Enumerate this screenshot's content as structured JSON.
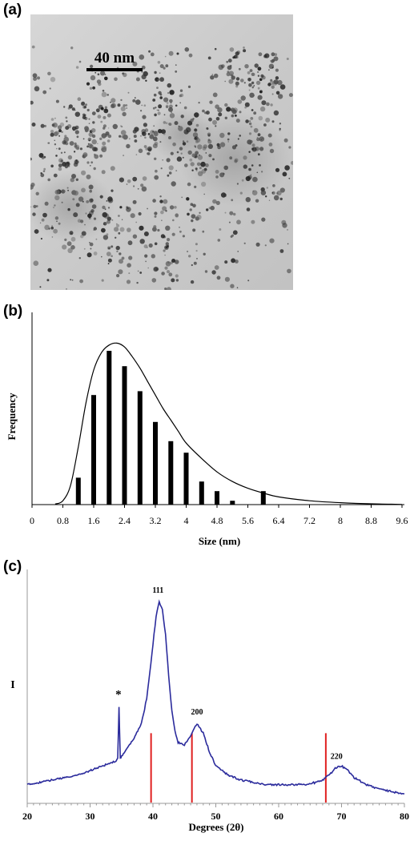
{
  "panels": {
    "a": "(a)",
    "b": "(b)",
    "c": "(c)"
  },
  "tem": {
    "scale_bar_label": "40 nm"
  },
  "chart_data": [
    {
      "type": "bar",
      "panel": "b",
      "xlabel": "Size (nm)",
      "ylabel": "Frequency",
      "xlim": [
        0,
        10.0
      ],
      "ylim": [
        0,
        100
      ],
      "x_ticks": [
        "0",
        "0.8",
        "1.6",
        "2.4",
        "3.2",
        "4",
        "4.8",
        "5.6",
        "6.4",
        "7.2",
        "8",
        "8.8",
        "9.6"
      ],
      "bars": {
        "x": [
          1.2,
          1.6,
          2.0,
          2.4,
          2.8,
          3.2,
          3.6,
          4.0,
          4.4,
          4.8,
          5.2,
          6.0
        ],
        "values": [
          14,
          57,
          80,
          72,
          59,
          43,
          33,
          27,
          12,
          7,
          2,
          7
        ]
      },
      "fit_curve": {
        "x": [
          0.6,
          0.8,
          1.0,
          1.2,
          1.4,
          1.6,
          1.8,
          2.0,
          2.2,
          2.4,
          2.6,
          2.8,
          3.0,
          3.2,
          3.4,
          3.6,
          3.8,
          4.0,
          4.4,
          4.8,
          5.2,
          5.6,
          6.0,
          6.4,
          7.2,
          8.0,
          8.8,
          9.6
        ],
        "values": [
          0.3,
          2,
          10,
          30,
          53,
          70,
          79,
          83,
          84,
          82,
          77,
          71,
          64,
          57,
          50,
          44,
          38,
          32,
          24,
          17,
          12,
          8.5,
          6,
          4,
          2,
          1,
          0.4,
          0.1
        ]
      }
    },
    {
      "type": "line",
      "panel": "c",
      "xlabel": "Degrees (2θ)",
      "ylabel": "I",
      "xlim": [
        20,
        80
      ],
      "ylim": [
        0,
        100
      ],
      "x_ticks": [
        "20",
        "30",
        "40",
        "50",
        "60",
        "70",
        "80"
      ],
      "colors": {
        "pattern": "#2b2b9c",
        "reference": "#e02020"
      },
      "series": [
        {
          "x": [
            20,
            22,
            24,
            26,
            28,
            30,
            32,
            34,
            34.4,
            34.6,
            34.8,
            35,
            36,
            37,
            38,
            38.5,
            39,
            39.5,
            40,
            40.5,
            41,
            41.5,
            42,
            42.5,
            43,
            43.5,
            44,
            45,
            46,
            47,
            48,
            49,
            50,
            52,
            54,
            56,
            58,
            60,
            62,
            64,
            66,
            67,
            68,
            69,
            70,
            71,
            72,
            74,
            76,
            78,
            80
          ],
          "values": [
            8,
            9,
            10,
            11,
            12,
            14,
            16,
            18,
            19,
            41,
            19,
            20,
            24,
            28,
            33,
            38,
            45,
            56,
            68,
            80,
            86,
            83,
            72,
            55,
            40,
            31,
            26,
            25,
            29,
            34,
            30,
            22,
            16,
            12,
            10,
            9,
            8,
            8,
            8,
            8,
            9,
            10,
            12,
            15,
            16,
            14,
            11,
            8,
            6,
            5,
            4
          ]
        }
      ],
      "reference_lines": [
        39.7,
        46.2,
        67.5
      ],
      "reference_height": 30,
      "peak_labels": [
        {
          "text": "111",
          "x": 40.8,
          "y": 90
        },
        {
          "text": "200",
          "x": 47.0,
          "y": 38
        },
        {
          "text": "220",
          "x": 69.2,
          "y": 19
        },
        {
          "text": "*",
          "x": 34.5,
          "y": 45
        }
      ]
    }
  ]
}
